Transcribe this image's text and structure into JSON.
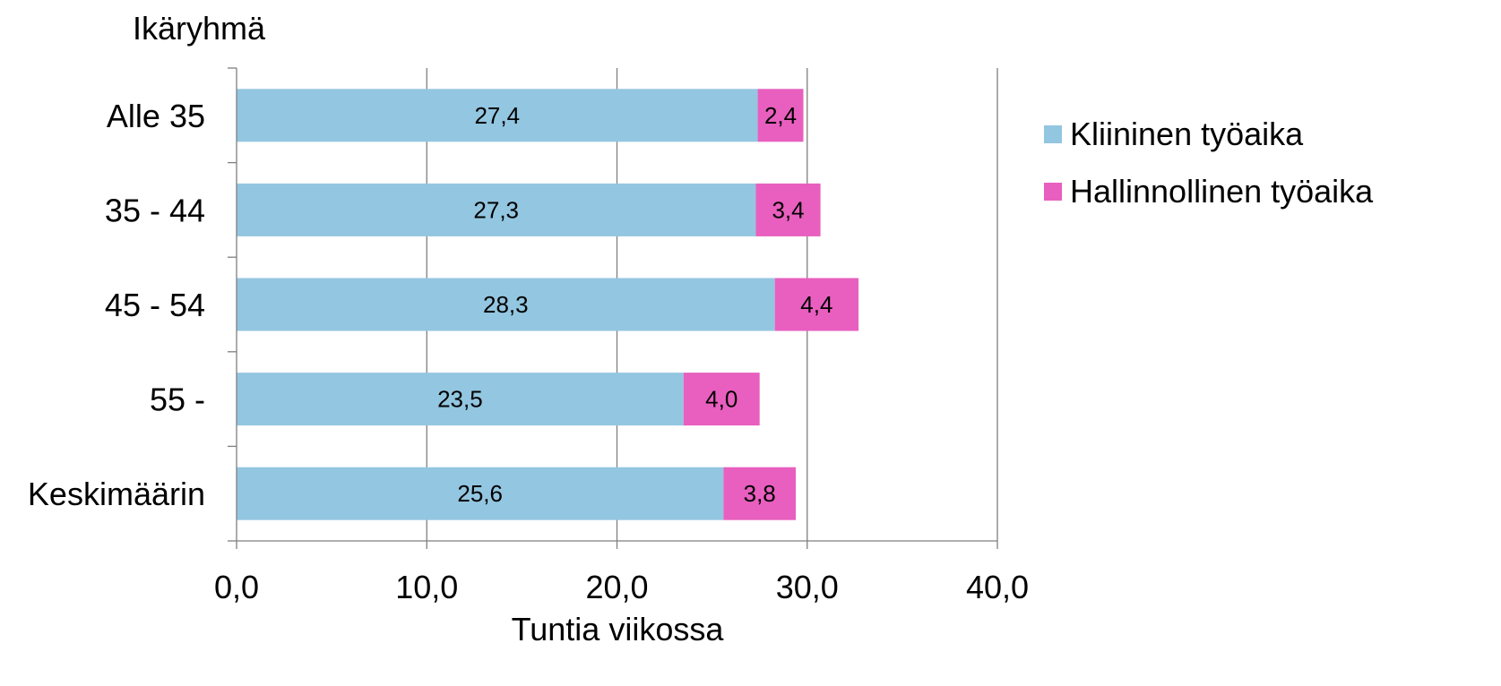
{
  "chart_data": {
    "type": "bar",
    "orientation": "horizontal",
    "stacked": true,
    "title": "",
    "ylabel": "Ikäryhmä",
    "xlabel": "Tuntia viikossa",
    "categories": [
      "Alle 35",
      "35 - 44",
      "45 - 54",
      "55 -",
      "Keskimäärin"
    ],
    "series": [
      {
        "name": "Kliininen työaika",
        "color": "#93c6e0",
        "values": [
          27.4,
          27.3,
          28.3,
          23.5,
          25.6
        ],
        "labels": [
          "27,4",
          "27,3",
          "28,3",
          "23,5",
          "25,6"
        ]
      },
      {
        "name": "Hallinnollinen työaika",
        "color": "#e85fbf",
        "values": [
          2.4,
          3.4,
          4.4,
          4.0,
          3.8
        ],
        "labels": [
          "2,4",
          "3,4",
          "4,4",
          "4,0",
          "3,8"
        ]
      }
    ],
    "xlim": [
      0,
      40
    ],
    "xticks": [
      0,
      10,
      20,
      30,
      40
    ],
    "xtick_labels": [
      "0,0",
      "10,0",
      "20,0",
      "30,0",
      "40,0"
    ],
    "grid": "vertical",
    "legend_position": "right"
  }
}
